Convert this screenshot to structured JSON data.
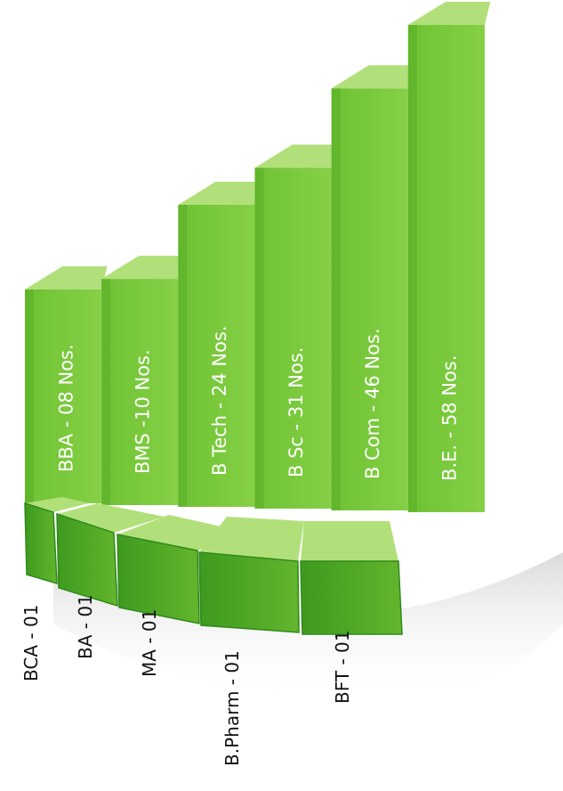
{
  "chart_data": {
    "type": "bar",
    "colors": {
      "face": "#76c73a",
      "side": "#5aad26",
      "top": "#b1e07a",
      "dark": "#2f8a1a"
    },
    "tall_bars": [
      {
        "label": "BBA - 08 Nos.",
        "value": 8
      },
      {
        "label": "BMS -10 Nos.",
        "value": 10
      },
      {
        "label": "B Tech - 24 Nos.",
        "value": 24
      },
      {
        "label": "B Sc - 31 Nos.",
        "value": 31
      },
      {
        "label": "B Com - 46 Nos.",
        "value": 46
      },
      {
        "label": "B.E.  - 58 Nos.",
        "value": 58
      }
    ],
    "small_bars": [
      {
        "label": "BCA - 01",
        "value": 1
      },
      {
        "label": "BA - 01",
        "value": 1
      },
      {
        "label": "MA - 01",
        "value": 1
      },
      {
        "label": "B.Pharm - 01",
        "value": 1
      },
      {
        "label": "BFT - 01",
        "value": 1
      }
    ]
  }
}
